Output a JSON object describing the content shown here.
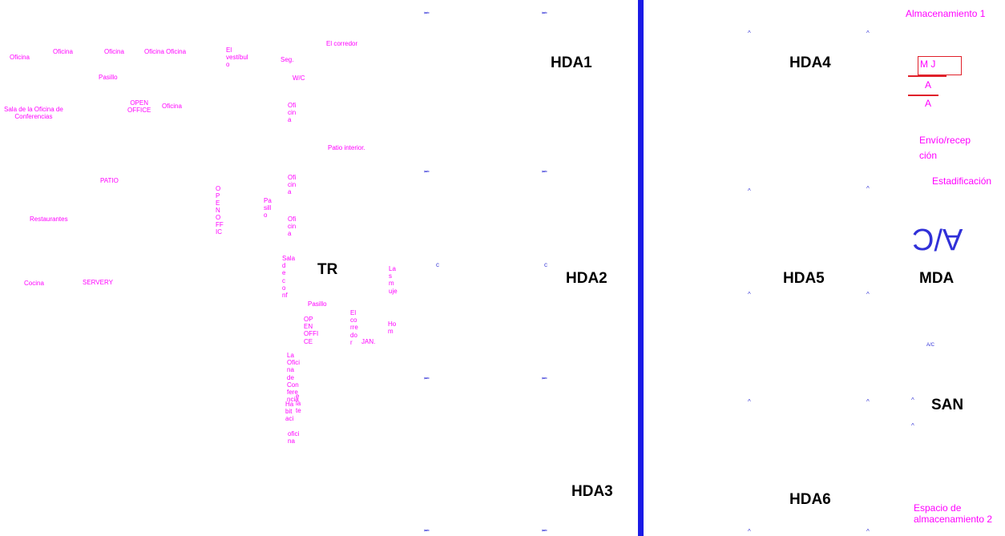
{
  "zones": {
    "hda1": "HDA1",
    "hda2": "HDA2",
    "hda3": "HDA3",
    "hda4": "HDA4",
    "hda5": "HDA5",
    "hda6": "HDA6",
    "tr": "TR",
    "mda": "MDA",
    "san": "SAN"
  },
  "rooms": {
    "oficina_1": "Oficina",
    "oficina_2": "Oficina",
    "oficina_3": "Oficina",
    "oficina_4": "Oficina Oficina",
    "vestibulo": "El\nvestíbul\no",
    "corredor_top": "El corredor",
    "seg": "Seg.",
    "pasillo_top": "Pasillo",
    "wc": "W/C",
    "sala_conf": "Sala de la Oficina de\nConferencias",
    "open_office_1": "OPEN\nOFFICE",
    "oficina_5": "Oficina",
    "oficina_v1": "Ofi\ncin\na",
    "patio_interior": "Patio interior.",
    "patio": "PATIO",
    "oficina_v2": "Ofi\ncin\na",
    "open_office_v": "O\nP\nE\nN\nO\nFF\nIC",
    "pasillo_v": "Pa\nsill\no",
    "restaurantes": "Restaurantes",
    "oficina_v3": "Ofi\ncin\na",
    "sala_conf_v": "Sala\nd\ne\nc\no\nnf",
    "cocina": "Cocina",
    "servery": "SERVERY",
    "las_mujeres": "La\ns\nm\nuje",
    "pasillo_mid": "Pasillo",
    "open_office_2": "OP\nEN\nOFFI\nCE",
    "corredor_v": "El\nco\nrre\ndo\nr",
    "jan": "JAN.",
    "hombres": "Ho\nm",
    "oficina_conf_v": "La\nOfici\nna\nde\nCon\nfere\nncia",
    "habitacion_v": "Ha\nbit\naci",
    "hab_extra": "e\nla\nte",
    "oficina_v4": "ofici\nna",
    "almacen_1": "Almacenamiento 1",
    "mj": "M  J",
    "a1": "A",
    "a2": "A",
    "envio": "Envío/recep\nción",
    "estadificacion": "Estadificación",
    "ac_big": "A/C",
    "ac_small": "A/C",
    "almacen_2": "Espacio de\nalmacenamiento 2"
  },
  "tick_marks": {
    "s": "ℹ",
    "c": "c",
    "caret": "^"
  },
  "colors": {
    "room_label": "#ff00ff",
    "zone_label": "#000000",
    "divider": "#1a1ae6",
    "tick": "#3a3ad8",
    "red_marker": "#e0202a"
  }
}
